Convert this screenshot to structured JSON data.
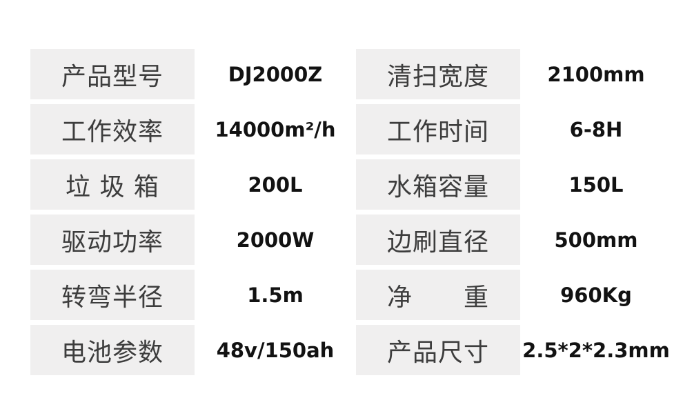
{
  "colors": {
    "page_background": "#ffffff",
    "label_cell_background": "#f0efef",
    "label_text": "#3d3d3d",
    "value_text": "#121212"
  },
  "spec_table": {
    "rows": [
      {
        "left": {
          "label": "产品型号",
          "value": "DJ2000Z"
        },
        "right": {
          "label": "清扫宽度",
          "value": "2100mm"
        }
      },
      {
        "left": {
          "label": "工作效率",
          "value": "14000m²/h"
        },
        "right": {
          "label": "工作时间",
          "value": "6-8H"
        }
      },
      {
        "left": {
          "label": "垃 圾 箱",
          "value": "200L"
        },
        "right": {
          "label": "水箱容量",
          "value": "150L"
        }
      },
      {
        "left": {
          "label": "驱动功率",
          "value": "2000W"
        },
        "right": {
          "label": "边刷直径",
          "value": "500mm"
        }
      },
      {
        "left": {
          "label": "转弯半径",
          "value": "1.5m"
        },
        "right": {
          "label": "净　　重",
          "value": "960Kg"
        }
      },
      {
        "left": {
          "label": "电池参数",
          "value": "48v/150ah"
        },
        "right": {
          "label": "产品尺寸",
          "value": "2.5*2*2.3mm"
        }
      }
    ]
  }
}
